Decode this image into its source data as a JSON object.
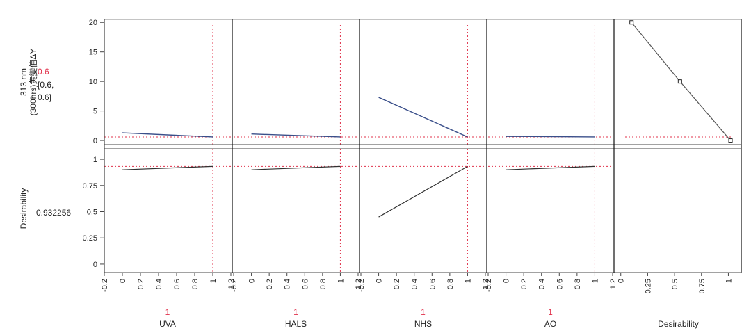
{
  "chart_data": {
    "type": "line",
    "title": "",
    "colors": {
      "response_line": "#3a4f8a",
      "desirability_line": "#333333",
      "reference_line": "#e0304a",
      "current_value_text": "#e0304a"
    },
    "response": {
      "label_lines": [
        "313 nm",
        "(300hrs)黄變值ΔY"
      ],
      "current_value": "0.6",
      "interval_lines": [
        "[0.6,",
        "0.6]"
      ],
      "ylim": [
        -0.7,
        20.5
      ],
      "yticks": [
        "0",
        "5",
        "10",
        "15",
        "20"
      ],
      "reference_y": 0.6
    },
    "desirability_row": {
      "label": "Desirability",
      "current_value": "0.932256",
      "ylim": [
        -0.08,
        1.1
      ],
      "yticks": [
        "0",
        "0.25",
        "0.5",
        "0.75",
        "1"
      ],
      "reference_y": 0.932
    },
    "factors": [
      {
        "name": "UVA",
        "current": "1",
        "current_x": 1,
        "xlim": [
          -0.2,
          1.2
        ],
        "xticks": [
          "-0.2",
          "0",
          "0.2",
          "0.4",
          "0.6",
          "0.8",
          "1",
          "1.2"
        ],
        "response_line": {
          "x": [
            0,
            1
          ],
          "y": [
            1.3,
            0.6
          ]
        },
        "desirability_line": {
          "x": [
            0,
            1
          ],
          "y": [
            0.9,
            0.932
          ]
        }
      },
      {
        "name": "HALS",
        "current": "1",
        "current_x": 1,
        "xlim": [
          -0.2,
          1.2
        ],
        "xticks": [
          "-0.2",
          "0",
          "0.2",
          "0.4",
          "0.6",
          "0.8",
          "1",
          "1.2"
        ],
        "response_line": {
          "x": [
            0,
            1
          ],
          "y": [
            1.1,
            0.6
          ]
        },
        "desirability_line": {
          "x": [
            0,
            1
          ],
          "y": [
            0.9,
            0.932
          ]
        }
      },
      {
        "name": "NHS",
        "current": "1",
        "current_x": 1,
        "xlim": [
          -0.2,
          1.2
        ],
        "xticks": [
          "-0.2",
          "0",
          "0.2",
          "0.4",
          "0.6",
          "0.8",
          "1",
          "1.2"
        ],
        "response_line": {
          "x": [
            0,
            1
          ],
          "y": [
            7.3,
            0.6
          ]
        },
        "desirability_line": {
          "x": [
            0,
            1
          ],
          "y": [
            0.45,
            0.932
          ]
        }
      },
      {
        "name": "AO",
        "current": "1",
        "current_x": 1,
        "xlim": [
          -0.2,
          1.2
        ],
        "xticks": [
          "-0.2",
          "0",
          "0.2",
          "0.4",
          "0.6",
          "0.8",
          "1",
          "1.2"
        ],
        "response_line": {
          "x": [
            0,
            1
          ],
          "y": [
            0.7,
            0.6
          ]
        },
        "desirability_line": {
          "x": [
            0,
            1
          ],
          "y": [
            0.9,
            0.932
          ]
        }
      }
    ],
    "desirability_panel": {
      "name": "Desirability",
      "xlim": [
        -0.05,
        1.12
      ],
      "xticks": [
        "0",
        "0.25",
        "0.5",
        "0.75",
        "1"
      ],
      "function": {
        "x": [
          0.1,
          0.55,
          1.02
        ],
        "y": [
          20,
          10,
          0
        ]
      },
      "reference_y": 0.6
    }
  }
}
